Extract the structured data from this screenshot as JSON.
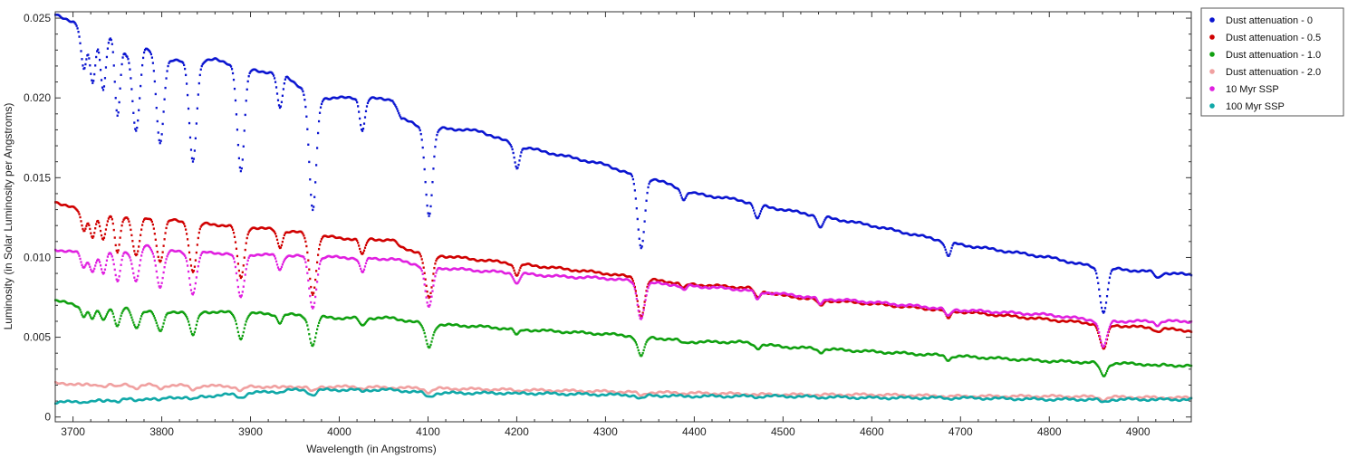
{
  "chart_data": {
    "type": "scatter",
    "xlabel": "Wavelength (in Angstroms)",
    "ylabel": "Luminosity (in Solar Luminosity per Angstroms)",
    "xlim": [
      3680,
      4960
    ],
    "ylim": [
      -0.0003,
      0.0254
    ],
    "xticks": [
      3700,
      3800,
      3900,
      4000,
      4100,
      4200,
      4300,
      4400,
      4500,
      4600,
      4700,
      4800,
      4900
    ],
    "yticks": [
      {
        "value": 0,
        "label": "0"
      },
      {
        "value": 0.005,
        "label": "0.005"
      },
      {
        "value": 0.01,
        "label": "0.010"
      },
      {
        "value": 0.015,
        "label": "0.015"
      },
      {
        "value": 0.02,
        "label": "0.020"
      },
      {
        "value": 0.025,
        "label": "0.025"
      }
    ],
    "grid": false,
    "legend_position": "outside-top-right",
    "absorption_lines": [
      {
        "x": 3712,
        "depth": 0.1
      },
      {
        "x": 3722,
        "depth": 0.12
      },
      {
        "x": 3734,
        "depth": 0.14
      },
      {
        "x": 3750,
        "depth": 0.2
      },
      {
        "x": 3771,
        "depth": 0.22
      },
      {
        "x": 3798,
        "depth": 0.24
      },
      {
        "x": 3835,
        "depth": 0.28
      },
      {
        "x": 3889,
        "depth": 0.3
      },
      {
        "x": 3933,
        "depth": 0.1
      },
      {
        "x": 3970,
        "depth": 0.36
      },
      {
        "x": 4026,
        "depth": 0.1
      },
      {
        "x": 4101,
        "depth": 0.3
      },
      {
        "x": 4200,
        "depth": 0.08
      },
      {
        "x": 4340,
        "depth": 0.3
      },
      {
        "x": 4388,
        "depth": 0.04
      },
      {
        "x": 4471,
        "depth": 0.07
      },
      {
        "x": 4542,
        "depth": 0.06
      },
      {
        "x": 4686,
        "depth": 0.08
      },
      {
        "x": 4861,
        "depth": 0.3
      },
      {
        "x": 4922,
        "depth": 0.04
      }
    ],
    "series": [
      {
        "name": "Dust attenuation - 0",
        "color": "#0a14d0",
        "x": [
          3680,
          3700,
          3720,
          3745,
          3760,
          3780,
          3800,
          3830,
          3860,
          3900,
          3940,
          3960,
          3980,
          4020,
          4060,
          4070,
          4100,
          4120,
          4160,
          4200,
          4250,
          4300,
          4330,
          4350,
          4400,
          4450,
          4480,
          4550,
          4600,
          4700,
          4800,
          4850,
          4870,
          4960
        ],
        "y": [
          0.0252,
          0.0248,
          0.0238,
          0.024,
          0.0228,
          0.0232,
          0.0225,
          0.0222,
          0.0224,
          0.0218,
          0.0214,
          0.0205,
          0.02,
          0.02,
          0.0199,
          0.0187,
          0.018,
          0.0181,
          0.0179,
          0.017,
          0.0164,
          0.0158,
          0.0152,
          0.015,
          0.014,
          0.0136,
          0.0132,
          0.0125,
          0.012,
          0.0108,
          0.01,
          0.0094,
          0.0093,
          0.0089
        ]
      },
      {
        "name": "Dust attenuation - 0.5",
        "color": "#d00000",
        "x": [
          3680,
          3720,
          3760,
          3800,
          3850,
          3900,
          3950,
          4000,
          4060,
          4070,
          4100,
          4150,
          4200,
          4300,
          4350,
          4400,
          4460,
          4500,
          4550,
          4600,
          4700,
          4800,
          4860,
          4960
        ],
        "y": [
          0.0135,
          0.0127,
          0.0126,
          0.0124,
          0.0121,
          0.0119,
          0.0116,
          0.0112,
          0.0111,
          0.0106,
          0.0102,
          0.0099,
          0.0096,
          0.009,
          0.0086,
          0.0083,
          0.0081,
          0.0076,
          0.0073,
          0.0071,
          0.0066,
          0.0061,
          0.0058,
          0.0054
        ]
      },
      {
        "name": "Dust attenuation - 1.0",
        "color": "#10a010",
        "x": [
          3680,
          3720,
          3760,
          3800,
          3850,
          3900,
          3950,
          4000,
          4060,
          4100,
          4150,
          4200,
          4300,
          4350,
          4400,
          4450,
          4500,
          4600,
          4700,
          4800,
          4860,
          4960
        ],
        "y": [
          0.0073,
          0.0068,
          0.0068,
          0.0066,
          0.0066,
          0.0065,
          0.0064,
          0.0062,
          0.0062,
          0.0058,
          0.0057,
          0.0055,
          0.0052,
          0.005,
          0.0047,
          0.0047,
          0.0044,
          0.0041,
          0.0038,
          0.0035,
          0.0034,
          0.0032
        ]
      },
      {
        "name": "Dust attenuation - 2.0",
        "color": "#f0a0a0",
        "x": [
          3680,
          3800,
          3900,
          4000,
          4100,
          4200,
          4300,
          4400,
          4500,
          4600,
          4700,
          4800,
          4960
        ],
        "y": [
          0.0021,
          0.002,
          0.0019,
          0.0019,
          0.0018,
          0.0017,
          0.0016,
          0.0015,
          0.0014,
          0.0014,
          0.0013,
          0.0013,
          0.0012
        ]
      },
      {
        "name": "10 Myr SSP",
        "color": "#e020e0",
        "x": [
          3680,
          3720,
          3760,
          3780,
          3800,
          3850,
          3900,
          3950,
          4000,
          4060,
          4100,
          4150,
          4200,
          4250,
          4300,
          4350,
          4400,
          4450,
          4500,
          4550,
          4600,
          4700,
          4800,
          4860,
          4960
        ],
        "y": [
          0.0105,
          0.0102,
          0.0104,
          0.0108,
          0.0104,
          0.0103,
          0.0102,
          0.0101,
          0.01,
          0.0099,
          0.0094,
          0.0092,
          0.009,
          0.0088,
          0.0087,
          0.0084,
          0.0082,
          0.008,
          0.0077,
          0.0074,
          0.0072,
          0.0067,
          0.0064,
          0.006,
          0.006
        ]
      },
      {
        "name": "100 Myr SSP",
        "color": "#10a8a8",
        "x": [
          3680,
          3750,
          3850,
          3900,
          3950,
          4000,
          4060,
          4100,
          4200,
          4300,
          4400,
          4500,
          4600,
          4700,
          4800,
          4960
        ],
        "y": [
          0.0009,
          0.0011,
          0.0013,
          0.0015,
          0.0017,
          0.0017,
          0.0017,
          0.0015,
          0.0015,
          0.0014,
          0.0013,
          0.0013,
          0.0012,
          0.0012,
          0.0011,
          0.0011
        ]
      }
    ]
  }
}
